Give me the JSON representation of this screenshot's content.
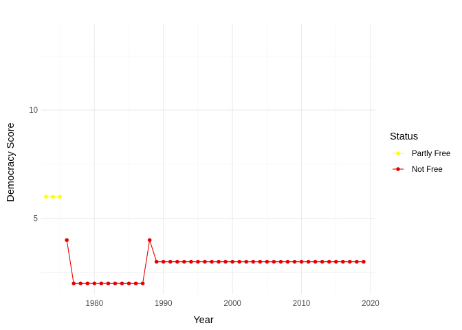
{
  "chart_data": {
    "type": "line",
    "xlabel": "Year",
    "ylabel": "Democracy Score",
    "xlim": [
      1972.3,
      2020.7
    ],
    "ylim": [
      1.5,
      14.0
    ],
    "x_ticks": [
      1980,
      1990,
      2000,
      2010,
      2020
    ],
    "y_ticks": [
      5,
      10
    ],
    "grid": true,
    "legend": {
      "title": "Status",
      "placement": "right"
    },
    "series": [
      {
        "name": "Partly Free",
        "color": "#FFFF00",
        "x": [
          1973,
          1974,
          1975
        ],
        "y": [
          6,
          6,
          6
        ]
      },
      {
        "name": "Not Free",
        "color": "#E60000",
        "x": [
          1976,
          1977,
          1978,
          1979,
          1980,
          1981,
          1982,
          1983,
          1984,
          1985,
          1986,
          1987,
          1988,
          1989,
          1990,
          1991,
          1992,
          1993,
          1994,
          1995,
          1996,
          1997,
          1998,
          1999,
          2000,
          2001,
          2002,
          2003,
          2004,
          2005,
          2006,
          2007,
          2008,
          2009,
          2010,
          2011,
          2012,
          2013,
          2014,
          2015,
          2016,
          2017,
          2018,
          2019
        ],
        "y": [
          4,
          2,
          2,
          2,
          2,
          2,
          2,
          2,
          2,
          2,
          2,
          2,
          4,
          3,
          3,
          3,
          3,
          3,
          3,
          3,
          3,
          3,
          3,
          3,
          3,
          3,
          3,
          3,
          3,
          3,
          3,
          3,
          3,
          3,
          3,
          3,
          3,
          3,
          3,
          3,
          3,
          3,
          3,
          3
        ]
      }
    ]
  }
}
